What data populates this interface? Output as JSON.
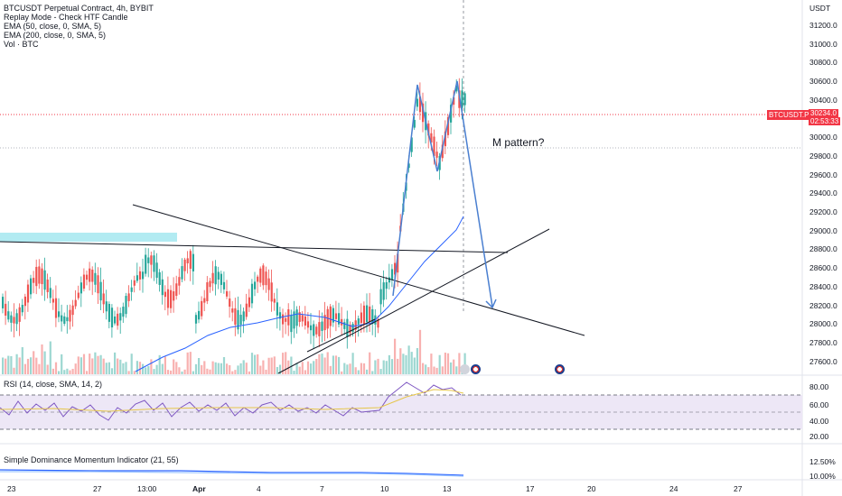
{
  "header": {
    "title": "BTCUSDT Perpetual Contract, 4h, BYBIT",
    "legend": [
      "Replay Mode - Check HTF Candle",
      "EMA (50, close, 0, SMA, 5)",
      "EMA (200, close, 0, SMA, 5)",
      "Vol · BTC"
    ]
  },
  "price_axis": {
    "currency": "USDT",
    "ticks": [
      "31200.0",
      "31000.0",
      "30800.0",
      "30600.0",
      "30400.0",
      "30200.0",
      "30000.0",
      "29800.0",
      "29600.0",
      "29400.0",
      "29200.0",
      "29000.0",
      "28800.0",
      "28600.0",
      "28400.0",
      "28200.0",
      "28000.0",
      "27800.0",
      "27600.0"
    ],
    "current_price": "30234.0",
    "countdown": "02:53:33",
    "symbol_tag": "BTCUSDT.P"
  },
  "rsi_panel": {
    "label": "RSI (14, close, SMA, 14, 2)",
    "ticks": [
      "80.00",
      "60.00",
      "40.00",
      "20.00"
    ]
  },
  "momentum_panel": {
    "label": "Simple Dominance Momentum Indicator (21, 55)",
    "ticks": [
      "12.50%",
      "10.00%"
    ]
  },
  "time_axis": {
    "ticks": [
      {
        "label": "23",
        "bold": false
      },
      {
        "label": "27",
        "bold": false
      },
      {
        "label": "13:00",
        "bold": false
      },
      {
        "label": "Apr",
        "bold": true
      },
      {
        "label": "4",
        "bold": false
      },
      {
        "label": "7",
        "bold": false
      },
      {
        "label": "10",
        "bold": false
      },
      {
        "label": "13",
        "bold": false
      },
      {
        "label": "17",
        "bold": false
      },
      {
        "label": "20",
        "bold": false
      },
      {
        "label": "24",
        "bold": false
      },
      {
        "label": "27",
        "bold": false
      }
    ]
  },
  "annotation": "M pattern?",
  "colors": {
    "up": "#26a69a",
    "down": "#ef5350",
    "ema50": "#2962ff",
    "drawing": "#131722",
    "m_pattern": "#4a7fd0",
    "resistance_zone": "#b2ebf2",
    "rsi": "#7e57c2",
    "rsi_band": "#ede7f6"
  }
}
